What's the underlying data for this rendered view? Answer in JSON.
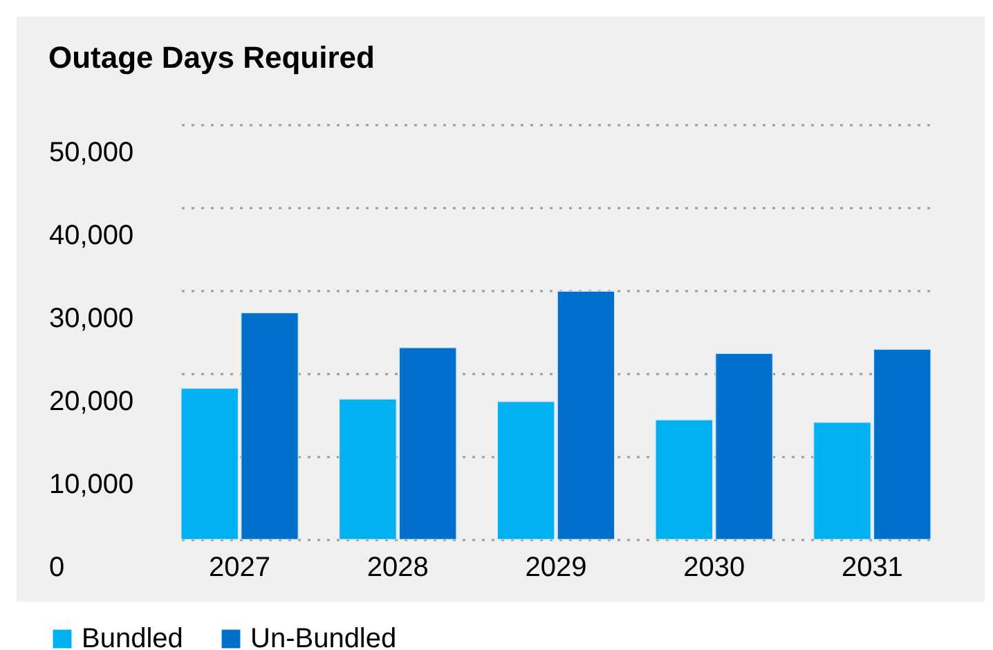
{
  "chart_data": {
    "type": "bar",
    "title": "Outage Days Required",
    "categories": [
      "2027",
      "2028",
      "2029",
      "2030",
      "2031"
    ],
    "series": [
      {
        "name": "Bundled",
        "color": "#00b0f0",
        "values": [
          18200,
          16900,
          16600,
          14400,
          14100
        ]
      },
      {
        "name": "Un-Bundled",
        "color": "#0070cc",
        "values": [
          27300,
          23100,
          29900,
          22400,
          22900
        ]
      }
    ],
    "ylim": [
      0,
      50000
    ],
    "yticks": [
      0,
      {
        "value": 10000,
        "label": "10,000"
      },
      {
        "value": 20000,
        "label": "20,000"
      },
      {
        "value": 30000,
        "label": "30,000"
      },
      {
        "value": 40000,
        "label": "40,000"
      },
      {
        "value": 50000,
        "label": "50,000"
      }
    ],
    "grid": "y",
    "legend": "bottom left"
  }
}
